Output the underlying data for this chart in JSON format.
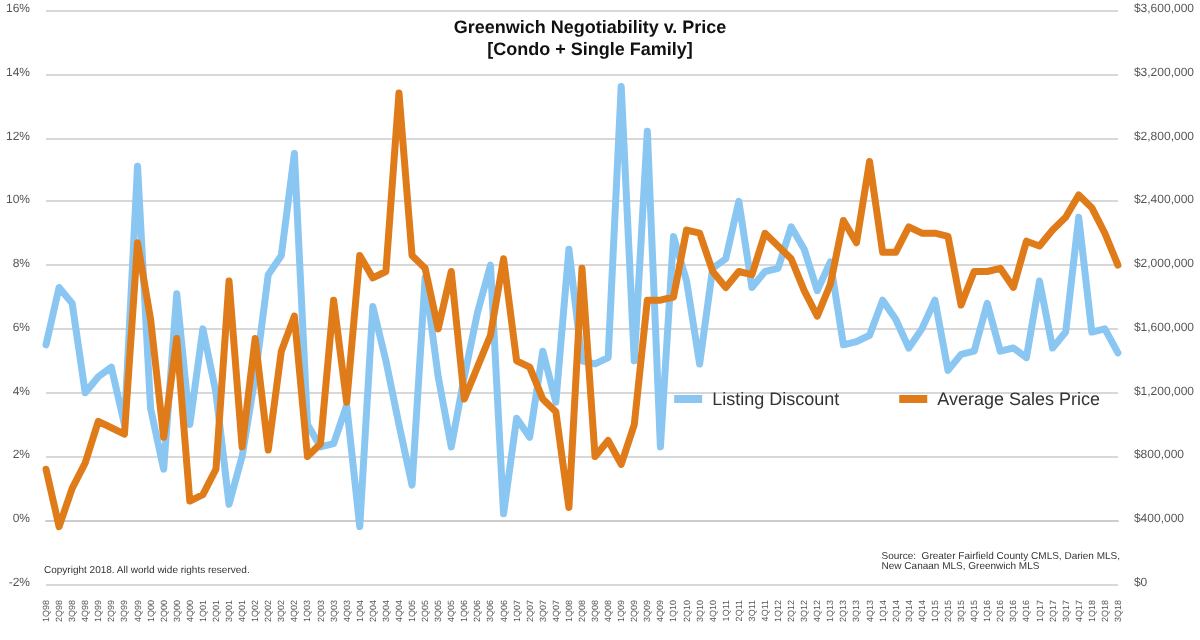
{
  "chart_data": {
    "type": "line",
    "title": "Greenwich Negotiability v. Price",
    "subtitle": "[Condo + Single Family]",
    "categories": [
      "1Q98",
      "2Q98",
      "3Q98",
      "4Q98",
      "1Q99",
      "2Q99",
      "3Q99",
      "4Q99",
      "1Q00",
      "2Q00",
      "3Q00",
      "4Q00",
      "1Q01",
      "2Q01",
      "3Q01",
      "4Q01",
      "1Q02",
      "2Q02",
      "3Q02",
      "4Q02",
      "1Q03",
      "2Q03",
      "3Q03",
      "4Q03",
      "1Q04",
      "2Q04",
      "3Q04",
      "4Q04",
      "1Q05",
      "2Q05",
      "3Q05",
      "4Q05",
      "1Q06",
      "2Q06",
      "3Q06",
      "4Q06",
      "1Q07",
      "2Q07",
      "3Q07",
      "4Q07",
      "1Q08",
      "2Q08",
      "3Q08",
      "4Q08",
      "1Q09",
      "2Q09",
      "3Q09",
      "4Q09",
      "1Q10",
      "2Q10",
      "3Q10",
      "4Q10",
      "1Q11",
      "2Q11",
      "3Q11",
      "4Q11",
      "1Q12",
      "2Q12",
      "3Q12",
      "4Q12",
      "1Q13",
      "2Q13",
      "3Q13",
      "4Q13",
      "1Q14",
      "2Q14",
      "3Q14",
      "4Q14",
      "1Q15",
      "2Q15",
      "3Q15",
      "4Q15",
      "1Q16",
      "2Q16",
      "3Q16",
      "4Q16",
      "1Q17",
      "2Q17",
      "3Q17",
      "4Q17",
      "1Q18",
      "2Q18",
      "3Q18"
    ],
    "series": [
      {
        "name": "Listing Discount",
        "color": "#8ac6f2",
        "values": [
          5.5,
          7.3,
          6.8,
          4.0,
          4.5,
          4.8,
          3.0,
          11.1,
          3.5,
          1.6,
          7.1,
          3.0,
          6.0,
          4.0,
          0.5,
          2.0,
          4.5,
          7.7,
          8.3,
          11.5,
          3.0,
          2.3,
          2.4,
          3.6,
          -0.2,
          6.7,
          5.0,
          3.0,
          1.1,
          7.6,
          4.5,
          2.3,
          4.5,
          6.5,
          8.0,
          0.2,
          3.2,
          2.6,
          5.3,
          3.7,
          8.5,
          5.0,
          4.9,
          5.1,
          13.6,
          5.0,
          12.2,
          2.3,
          8.9,
          7.5,
          4.9,
          7.9,
          8.2,
          10.0,
          7.3,
          7.8,
          7.9,
          9.2,
          8.5,
          7.2,
          8.1,
          5.5,
          5.6,
          5.8,
          6.9,
          6.3,
          5.4,
          6.0,
          6.9,
          4.7,
          5.2,
          5.3,
          6.8,
          5.3,
          5.4,
          5.1,
          7.5,
          5.4,
          5.9,
          9.5,
          5.9,
          6.0,
          5.25
        ]
      },
      {
        "name": "Average Sales Price",
        "color": "#e07b1a",
        "axis": "y2",
        "values": [
          720000,
          360000,
          600000,
          760000,
          1020000,
          980000,
          940000,
          2140000,
          1660000,
          920000,
          1540000,
          520000,
          560000,
          720000,
          1900000,
          860000,
          1540000,
          840000,
          1460000,
          1680000,
          800000,
          880000,
          1780000,
          1140000,
          2060000,
          1920000,
          1960000,
          3080000,
          2060000,
          1980000,
          1600000,
          1960000,
          1160000,
          1360000,
          1560000,
          2040000,
          1400000,
          1360000,
          1160000,
          1080000,
          480000,
          1980000,
          800000,
          900000,
          750000,
          1000000,
          1780000,
          1780000,
          1800000,
          2220000,
          2200000,
          1960000,
          1860000,
          1960000,
          1940000,
          2200000,
          2120000,
          2040000,
          1840000,
          1680000,
          1880000,
          2280000,
          2140000,
          2650000,
          2080000,
          2080000,
          2240000,
          2200000,
          2200000,
          2180000,
          1750000,
          1960000,
          1960000,
          1980000,
          1860000,
          2150000,
          2120000,
          2220000,
          2300000,
          2440000,
          2360000,
          2200000,
          2000000
        ]
      }
    ],
    "ylim": [
      -2,
      16
    ],
    "yticks": [
      {
        "value": -2,
        "label": "-2%"
      },
      {
        "value": 0,
        "label": "0%"
      },
      {
        "value": 2,
        "label": "2%"
      },
      {
        "value": 4,
        "label": "4%"
      },
      {
        "value": 6,
        "label": "6%"
      },
      {
        "value": 8,
        "label": "8%"
      },
      {
        "value": 10,
        "label": "10%"
      },
      {
        "value": 12,
        "label": "12%"
      },
      {
        "value": 14,
        "label": "14%"
      },
      {
        "value": 16,
        "label": "16%"
      }
    ],
    "y2lim": [
      0,
      3600000
    ],
    "y2ticks": [
      {
        "value": 0,
        "label": "$0"
      },
      {
        "value": 400000,
        "label": "$400,000"
      },
      {
        "value": 800000,
        "label": "$800,000"
      },
      {
        "value": 1200000,
        "label": "$1,200,000"
      },
      {
        "value": 1600000,
        "label": "$1,600,000"
      },
      {
        "value": 2000000,
        "label": "$2,000,000"
      },
      {
        "value": 2400000,
        "label": "$2,400,000"
      },
      {
        "value": 2800000,
        "label": "$2,800,000"
      },
      {
        "value": 3200000,
        "label": "$3,200,000"
      },
      {
        "value": 3600000,
        "label": "$3,600,000"
      }
    ],
    "grid": "y",
    "legend": "bottom right",
    "marker": "none",
    "line_style": "solid",
    "annotations": [
      "Copyright 2018. All world wide rights reserved.",
      "Source:  Greater Fairfield County CMLS, Darien MLS,\nNew Canaan MLS, Greenwich MLS"
    ]
  }
}
